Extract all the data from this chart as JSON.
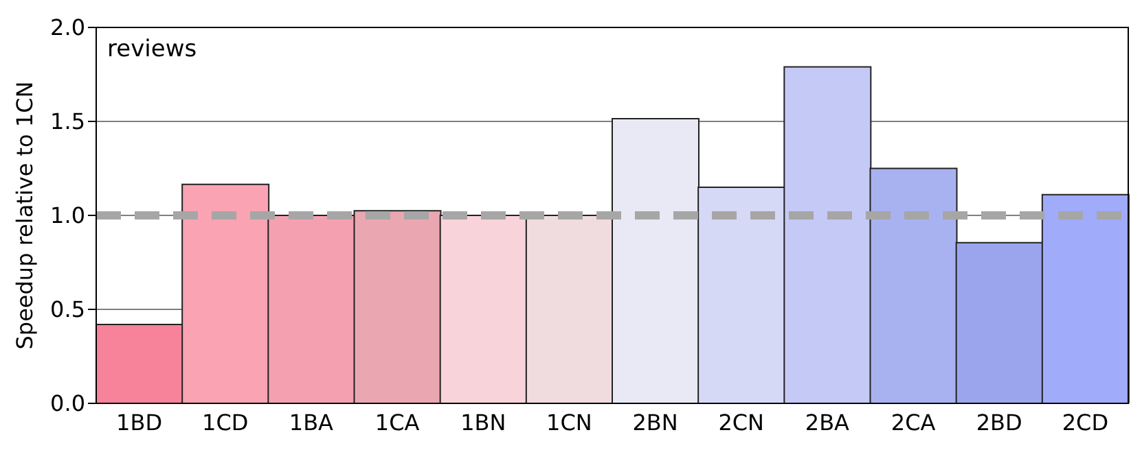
{
  "chart_data": {
    "type": "bar",
    "title": "reviews",
    "ylabel": "Speedup relative to 1CN",
    "categories": [
      "1BD",
      "1CD",
      "1BA",
      "1CA",
      "1BN",
      "1CN",
      "2BN",
      "2CN",
      "2BA",
      "2CA",
      "2BD",
      "2CD"
    ],
    "values": [
      0.42,
      1.165,
      1.0,
      1.025,
      1.0,
      1.0,
      1.515,
      1.15,
      1.79,
      1.25,
      0.855,
      1.11
    ],
    "colors": [
      "#f7839b",
      "#f9a3b3",
      "#f5a0b0",
      "#eaa7b2",
      "#f8d3da",
      "#f0dcdf",
      "#e8e9f5",
      "#d6d9f5",
      "#c4c9f5",
      "#a9b2f0",
      "#9aa5ee",
      "#a0abfa"
    ],
    "ylim": [
      0,
      2
    ],
    "yticks": [
      {
        "value": 0,
        "label": "0.0"
      },
      {
        "value": 0.5,
        "label": "0.5"
      },
      {
        "value": 1,
        "label": "1.0"
      },
      {
        "value": 1.5,
        "label": "1.5"
      },
      {
        "value": 2,
        "label": "2.0"
      }
    ],
    "grid": "y",
    "ref_lines": [
      {
        "axis": "y",
        "value": 1,
        "color": "#a6a6a6",
        "line_style": "dashed"
      }
    ]
  }
}
